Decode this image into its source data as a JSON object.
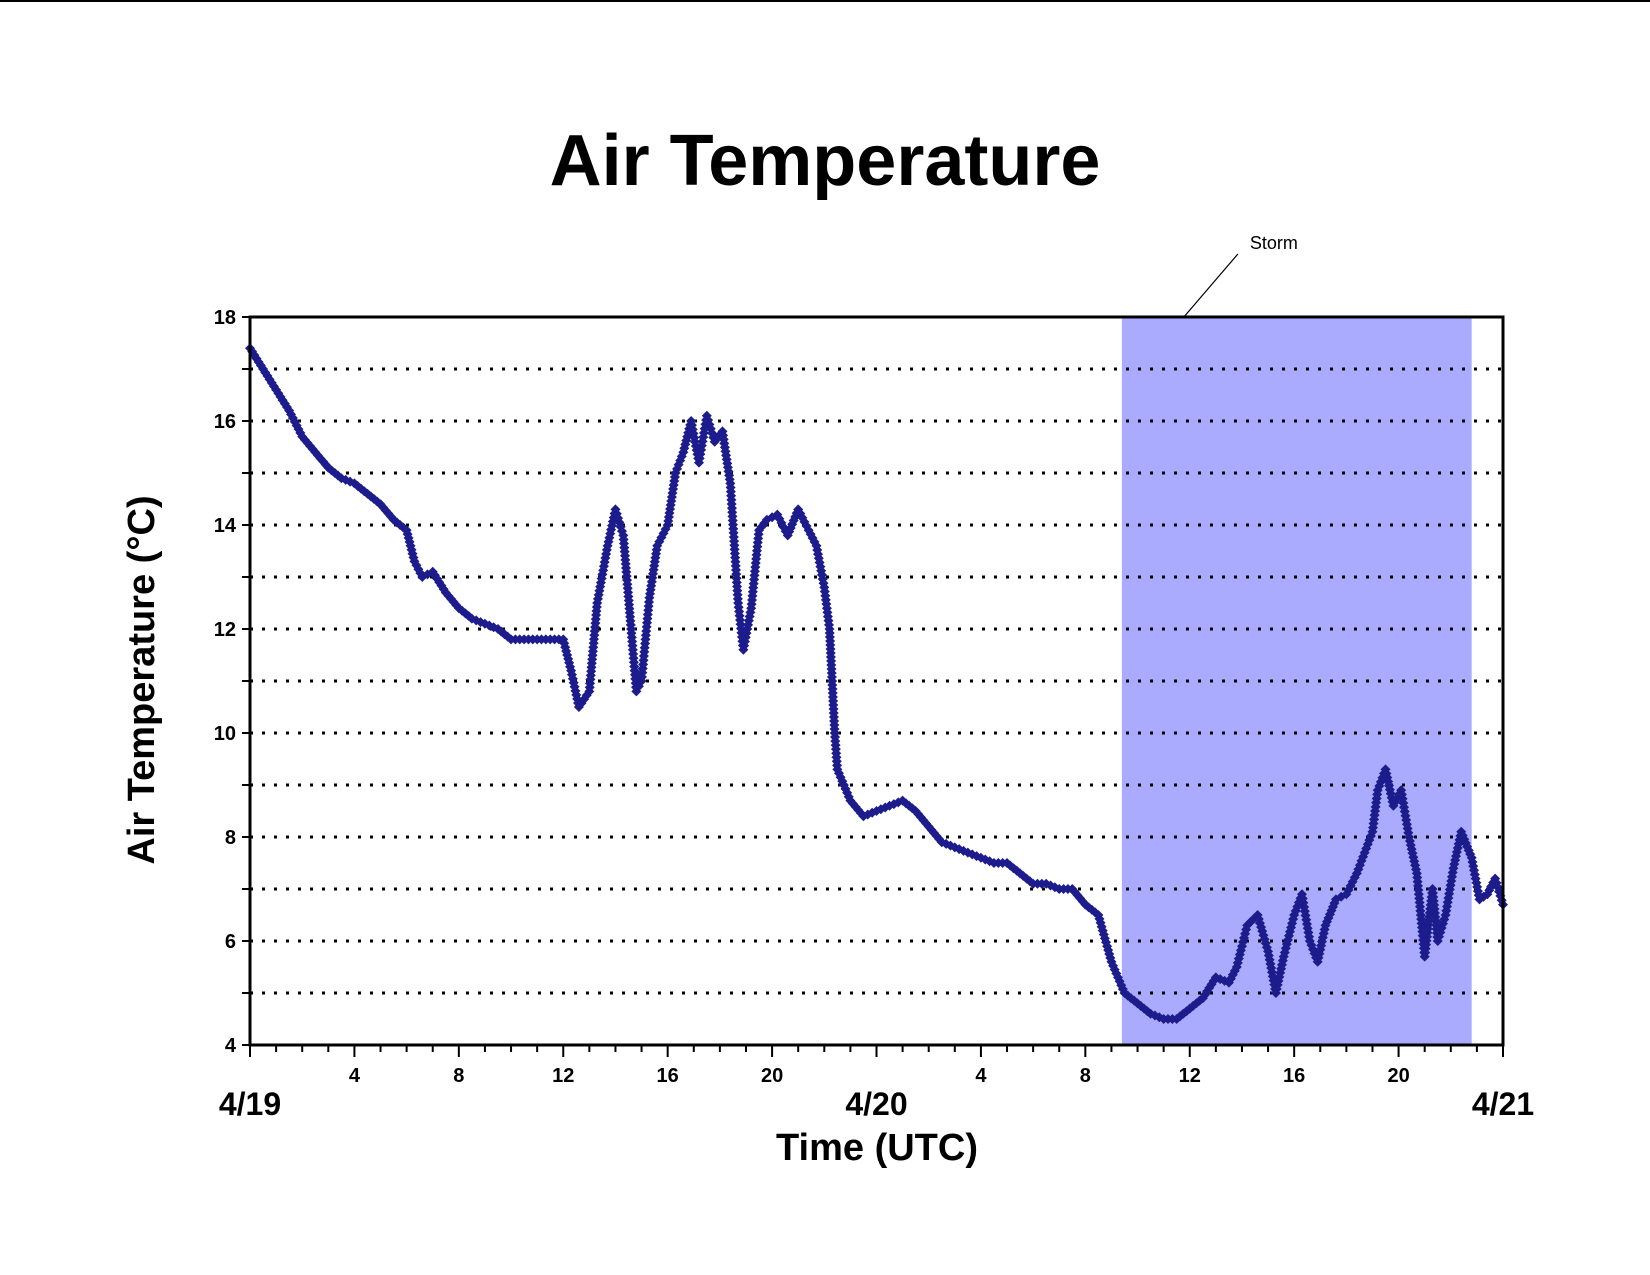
{
  "chart_data": {
    "type": "scatter",
    "title": "Air Temperature",
    "xlabel": "Time (UTC)",
    "ylabel": "Air Temperature (°C)",
    "ylim": [
      4,
      18
    ],
    "xlim_hours": [
      0,
      48
    ],
    "yticks": [
      "4",
      "6",
      "8",
      "10",
      "12",
      "14",
      "16",
      "18"
    ],
    "gridlines_y": [
      5,
      6,
      7,
      8,
      9,
      10,
      11,
      12,
      13,
      14,
      15,
      16,
      17
    ],
    "grid": "dotted horizontal",
    "x_hour_ticks": [
      {
        "h": 4,
        "label": "4"
      },
      {
        "h": 8,
        "label": "8"
      },
      {
        "h": 12,
        "label": "12"
      },
      {
        "h": 16,
        "label": "16"
      },
      {
        "h": 20,
        "label": "20"
      },
      {
        "h": 28,
        "label": "4"
      },
      {
        "h": 32,
        "label": "8"
      },
      {
        "h": 36,
        "label": "12"
      },
      {
        "h": 40,
        "label": "16"
      },
      {
        "h": 44,
        "label": "20"
      }
    ],
    "x_date_ticks": [
      {
        "h": 0,
        "label": "4/19"
      },
      {
        "h": 24,
        "label": "4/20"
      },
      {
        "h": 48,
        "label": "4/21"
      }
    ],
    "shaded_region": {
      "label": "Storm",
      "x_start": 33.4,
      "x_end": 46.8,
      "color": "#aaaaff"
    },
    "series_color": "#1c1c8c",
    "points": [
      [
        0,
        17.4
      ],
      [
        0.5,
        17.0
      ],
      [
        1,
        16.6
      ],
      [
        1.5,
        16.2
      ],
      [
        2,
        15.7
      ],
      [
        2.5,
        15.4
      ],
      [
        3,
        15.1
      ],
      [
        3.5,
        14.9
      ],
      [
        4,
        14.8
      ],
      [
        4.5,
        14.6
      ],
      [
        5,
        14.4
      ],
      [
        5.5,
        14.1
      ],
      [
        6,
        13.9
      ],
      [
        6.3,
        13.3
      ],
      [
        6.6,
        13.0
      ],
      [
        7,
        13.1
      ],
      [
        7.5,
        12.7
      ],
      [
        8,
        12.4
      ],
      [
        8.5,
        12.2
      ],
      [
        9,
        12.1
      ],
      [
        9.5,
        12.0
      ],
      [
        10,
        11.8
      ],
      [
        10.5,
        11.8
      ],
      [
        11,
        11.8
      ],
      [
        11.5,
        11.8
      ],
      [
        12,
        11.8
      ],
      [
        12.3,
        11.2
      ],
      [
        12.6,
        10.5
      ],
      [
        13,
        10.8
      ],
      [
        13.3,
        12.5
      ],
      [
        13.7,
        13.6
      ],
      [
        14,
        14.3
      ],
      [
        14.3,
        13.8
      ],
      [
        14.6,
        12.0
      ],
      [
        14.8,
        10.8
      ],
      [
        15,
        11.0
      ],
      [
        15.3,
        12.6
      ],
      [
        15.6,
        13.6
      ],
      [
        16,
        14.0
      ],
      [
        16.3,
        15.0
      ],
      [
        16.6,
        15.4
      ],
      [
        16.9,
        16.0
      ],
      [
        17.2,
        15.2
      ],
      [
        17.5,
        16.1
      ],
      [
        17.8,
        15.6
      ],
      [
        18.1,
        15.8
      ],
      [
        18.4,
        14.8
      ],
      [
        18.7,
        12.5
      ],
      [
        18.9,
        11.6
      ],
      [
        19.2,
        12.4
      ],
      [
        19.5,
        13.9
      ],
      [
        19.8,
        14.1
      ],
      [
        20.2,
        14.2
      ],
      [
        20.6,
        13.8
      ],
      [
        21,
        14.3
      ],
      [
        21.4,
        13.9
      ],
      [
        21.7,
        13.6
      ],
      [
        22,
        12.8
      ],
      [
        22.2,
        12.0
      ],
      [
        22.3,
        11.0
      ],
      [
        22.4,
        10.0
      ],
      [
        22.5,
        9.3
      ],
      [
        23,
        8.7
      ],
      [
        23.5,
        8.4
      ],
      [
        24,
        8.5
      ],
      [
        24.5,
        8.6
      ],
      [
        25,
        8.7
      ],
      [
        25.5,
        8.5
      ],
      [
        26,
        8.2
      ],
      [
        26.5,
        7.9
      ],
      [
        27,
        7.8
      ],
      [
        27.5,
        7.7
      ],
      [
        28,
        7.6
      ],
      [
        28.5,
        7.5
      ],
      [
        29,
        7.5
      ],
      [
        29.5,
        7.3
      ],
      [
        30,
        7.1
      ],
      [
        30.5,
        7.1
      ],
      [
        31,
        7.0
      ],
      [
        31.5,
        7.0
      ],
      [
        32,
        6.7
      ],
      [
        32.5,
        6.5
      ],
      [
        33,
        5.6
      ],
      [
        33.5,
        5.0
      ],
      [
        34,
        4.8
      ],
      [
        34.5,
        4.6
      ],
      [
        35,
        4.5
      ],
      [
        35.5,
        4.5
      ],
      [
        36,
        4.7
      ],
      [
        36.5,
        4.9
      ],
      [
        37,
        5.3
      ],
      [
        37.5,
        5.2
      ],
      [
        37.8,
        5.5
      ],
      [
        38.2,
        6.3
      ],
      [
        38.6,
        6.5
      ],
      [
        39,
        5.8
      ],
      [
        39.3,
        5.0
      ],
      [
        39.6,
        5.7
      ],
      [
        40,
        6.5
      ],
      [
        40.3,
        6.9
      ],
      [
        40.6,
        6.0
      ],
      [
        40.9,
        5.6
      ],
      [
        41.2,
        6.3
      ],
      [
        41.6,
        6.8
      ],
      [
        42,
        6.9
      ],
      [
        42.4,
        7.3
      ],
      [
        42.7,
        7.7
      ],
      [
        43,
        8.1
      ],
      [
        43.2,
        8.9
      ],
      [
        43.5,
        9.3
      ],
      [
        43.8,
        8.6
      ],
      [
        44.1,
        8.9
      ],
      [
        44.4,
        8.0
      ],
      [
        44.7,
        7.3
      ],
      [
        45,
        5.7
      ],
      [
        45.3,
        7.0
      ],
      [
        45.5,
        6.0
      ],
      [
        45.8,
        6.5
      ],
      [
        46.1,
        7.4
      ],
      [
        46.4,
        8.1
      ],
      [
        46.8,
        7.6
      ],
      [
        47.1,
        6.8
      ],
      [
        47.4,
        6.9
      ],
      [
        47.7,
        7.2
      ],
      [
        48,
        6.7
      ]
    ]
  }
}
